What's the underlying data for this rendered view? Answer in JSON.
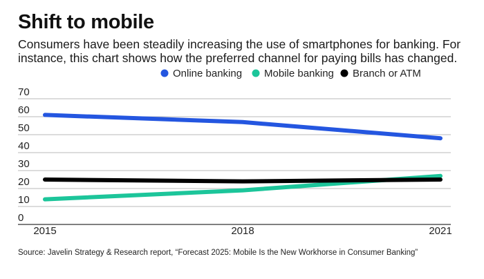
{
  "header": {
    "title": "Shift to mobile",
    "subtitle": "Consumers have been steadily increasing the use of smartphones for banking. For instance, this chart shows how the preferred channel for paying bills has changed."
  },
  "source": "Source: Javelin Strategy & Research report, “Forecast 2025: Mobile Is the New Workhorse in Consumer Banking”",
  "chart_data": {
    "type": "line",
    "x": [
      2015,
      2018,
      2021
    ],
    "x_tick_labels": [
      "2015",
      "2018",
      "2021"
    ],
    "y_ticks": [
      0,
      10,
      20,
      30,
      40,
      50,
      60,
      70
    ],
    "ylim": [
      0,
      70
    ],
    "grid": true,
    "legend_position": "top-right",
    "series": [
      {
        "name": "Online banking",
        "color": "#2456e0",
        "values": [
          61,
          57,
          48
        ]
      },
      {
        "name": "Mobile banking",
        "color": "#1cc59a",
        "values": [
          14,
          19,
          27
        ]
      },
      {
        "name": "Branch or ATM",
        "color": "#000000",
        "values": [
          25,
          24,
          25
        ]
      }
    ]
  }
}
